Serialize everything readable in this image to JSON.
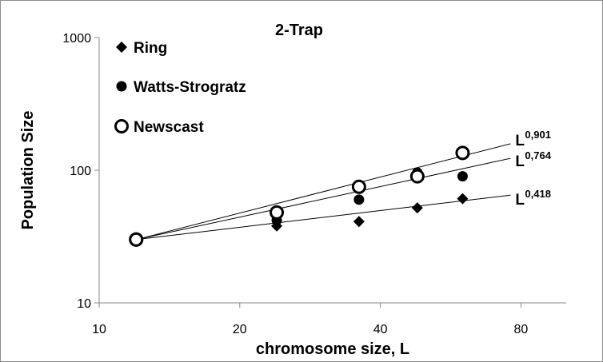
{
  "chart_data": {
    "type": "scatter",
    "title": "2-Trap",
    "xlabel": "chromosome size, L",
    "ylabel": "Population Size",
    "xscale": "log",
    "yscale": "log",
    "xlim": [
      10,
      100
    ],
    "ylim": [
      10,
      1000
    ],
    "xticks": [
      10,
      20,
      40,
      80
    ],
    "xtick_labels": [
      "10",
      "20",
      "40",
      "80"
    ],
    "yticks": [
      10,
      100,
      1000
    ],
    "ytick_labels": [
      "10",
      "100",
      "1000"
    ],
    "legend_position": "top-left",
    "grid": false,
    "series": [
      {
        "name": "Ring",
        "marker": "diamond",
        "points": [
          [
            12,
            30
          ],
          [
            24,
            38
          ],
          [
            36,
            41
          ],
          [
            48,
            52
          ],
          [
            60,
            61
          ]
        ],
        "fit_label": "L",
        "fit_exponent": "0,418",
        "fit_exponent_value": 0.418
      },
      {
        "name": "Watts-Strogratz",
        "marker": "filled-circle",
        "points": [
          [
            12,
            30
          ],
          [
            24,
            42
          ],
          [
            36,
            60
          ],
          [
            48,
            96
          ],
          [
            60,
            90
          ]
        ],
        "fit_label": "L",
        "fit_exponent": "0,764",
        "fit_exponent_value": 0.764
      },
      {
        "name": "Newscast",
        "marker": "open-circle",
        "points": [
          [
            12,
            30
          ],
          [
            24,
            48
          ],
          [
            36,
            75
          ],
          [
            48,
            90
          ],
          [
            60,
            135
          ]
        ],
        "fit_label": "L",
        "fit_exponent": "0,901",
        "fit_exponent_value": 0.901
      }
    ]
  },
  "colors": {
    "marker": "#000000",
    "axis": "#868686",
    "fit_line": "#000000"
  }
}
